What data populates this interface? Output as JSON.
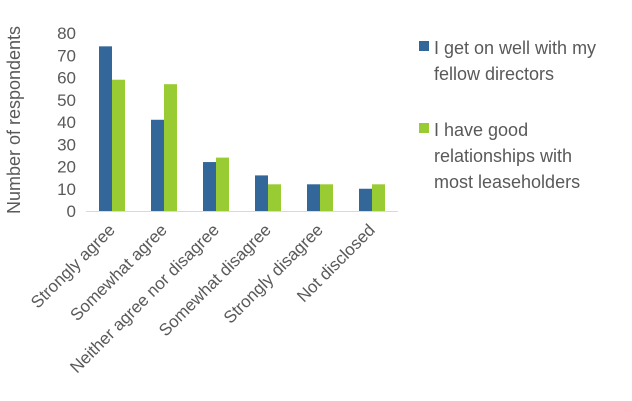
{
  "chart_data": {
    "type": "bar",
    "ylabel": "Number of respondents",
    "xlabel": "",
    "ylim": [
      0,
      80
    ],
    "yticks": [
      0,
      10,
      20,
      30,
      40,
      50,
      60,
      70,
      80
    ],
    "grid": false,
    "legend_position": "right",
    "categories": [
      "Strongly agree",
      "Somewhat agree",
      "Neither agree nor disagree",
      "Somewhat disagree",
      "Strongly disagree",
      "Not disclosed"
    ],
    "series": [
      {
        "name": "I get on well with my fellow directors",
        "legend_lines": [
          "I get on well with my",
          "fellow directors"
        ],
        "color": "#336699",
        "values": [
          74,
          41,
          22,
          16,
          12,
          10
        ]
      },
      {
        "name": "I have good relationships with most leaseholders",
        "legend_lines": [
          "I have good",
          "relationships with",
          "most leaseholders"
        ],
        "color": "#99cc33",
        "values": [
          59,
          57,
          24,
          12,
          12,
          12
        ]
      }
    ]
  }
}
